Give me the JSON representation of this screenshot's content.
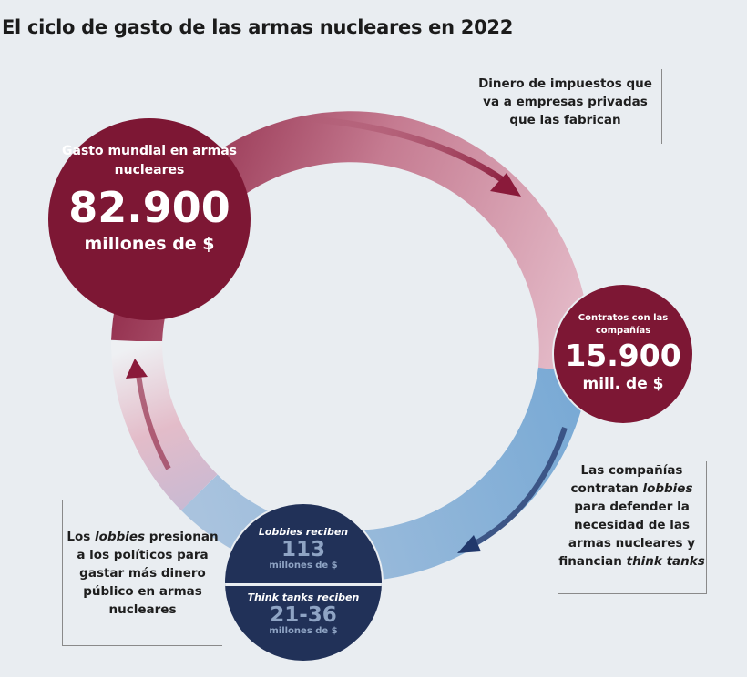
{
  "title": "El ciclo de gasto de las armas nucleares en 2022",
  "global_spending": {
    "label": "Gasto mundial en armas nucleares",
    "value": "82.900",
    "unit": "millones de $"
  },
  "contracts": {
    "label": "Contratos con las compañías",
    "value": "15.900",
    "unit": "mill. de $"
  },
  "lobbies": {
    "label": "Lobbies reciben",
    "value": "113",
    "unit": "millones de $"
  },
  "think_tanks": {
    "label": "Think tanks reciben",
    "value": "21-36",
    "unit": "millones de $"
  },
  "notes": {
    "taxes": "Dinero de impuestos que va a empresas privadas que las fabrican",
    "companies_a": "Las compañías contratan ",
    "companies_b": "lobbies",
    "companies_c": " para defender la necesidad de las armas nucleares y financian ",
    "companies_d": "think tanks",
    "lobbies_a": "Los ",
    "lobbies_b": "lobbies",
    "lobbies_c": " presionan a los políticos para gastar más dinero público en armas nucleares"
  },
  "colors": {
    "red": "#7d1734",
    "navy": "#213158",
    "blue": "#6fa1cf",
    "pink": "#e3b6c4"
  }
}
